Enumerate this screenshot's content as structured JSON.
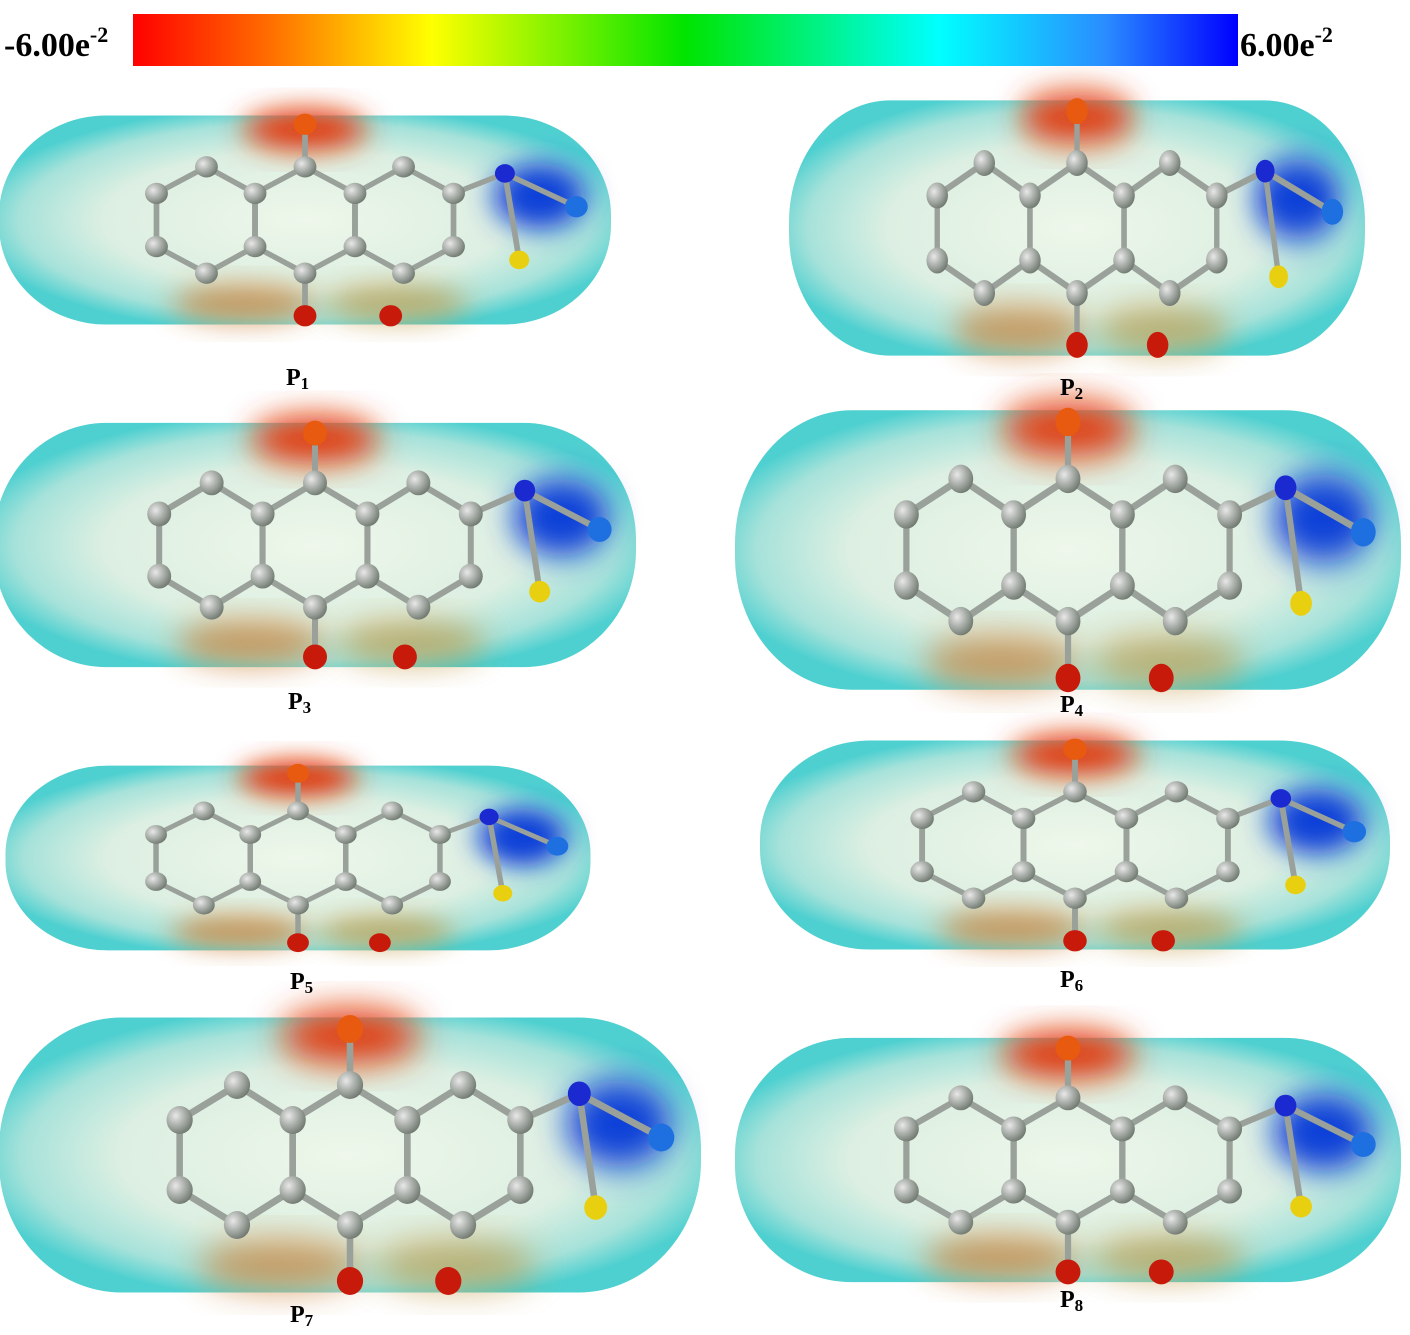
{
  "colorbar": {
    "min": {
      "mantissa": "-6.00e",
      "exponent": "-2"
    },
    "max": {
      "mantissa": "6.00e",
      "exponent": "-2"
    }
  },
  "panels": [
    {
      "letter": "P",
      "index": "1"
    },
    {
      "letter": "P",
      "index": "2"
    },
    {
      "letter": "P",
      "index": "3"
    },
    {
      "letter": "P",
      "index": "4"
    },
    {
      "letter": "P",
      "index": "5"
    },
    {
      "letter": "P",
      "index": "6"
    },
    {
      "letter": "P",
      "index": "7"
    },
    {
      "letter": "P",
      "index": "8"
    }
  ]
}
